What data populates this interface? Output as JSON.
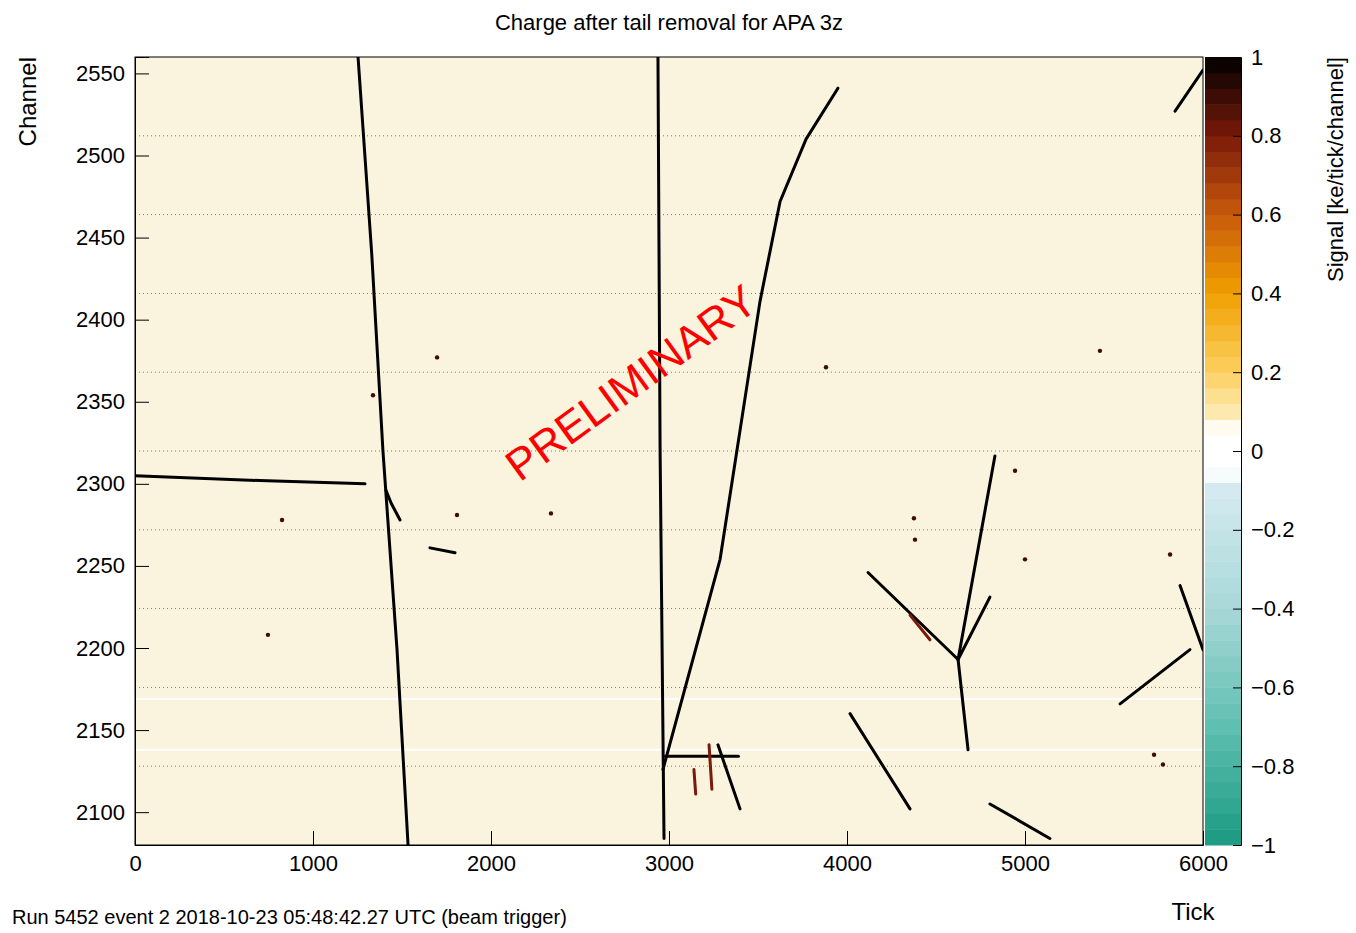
{
  "chart_data": {
    "type": "heatmap",
    "title": "Charge after tail removal for APA 3z",
    "x_label": "Tick",
    "y_label": "Channel",
    "footer": "Run 5452 event 2 2018-10-23 05:48:42.27 UTC (beam trigger)",
    "annotation": "PRELIMINARY",
    "xlim": [
      0,
      6000
    ],
    "xticks": [
      0,
      1000,
      2000,
      3000,
      4000,
      5000,
      6000
    ],
    "ylim": [
      2080,
      2560
    ],
    "yticks": [
      2100,
      2150,
      2200,
      2250,
      2300,
      2350,
      2400,
      2450,
      2500,
      2550
    ],
    "grid": false,
    "dividers": [
      2128,
      2176,
      2224,
      2272,
      2320,
      2368,
      2416,
      2464,
      2512
    ],
    "dead_channels": [
      2138,
      2169
    ],
    "tracks": [
      {
        "x": [
          1253,
          1330,
          1393,
          1472,
          1534
        ],
        "y": [
          2560,
          2440,
          2320,
          2199,
          2080
        ],
        "signal": 1
      },
      {
        "x": [
          0,
          700,
          1292
        ],
        "y": [
          2305,
          2302,
          2300
        ],
        "signal": 1
      },
      {
        "x": [
          1410,
          1440,
          1489
        ],
        "y": [
          2296,
          2288,
          2278
        ],
        "signal": 1
      },
      {
        "x": [
          2938,
          2950,
          2972
        ],
        "y": [
          2560,
          2320,
          2084
        ],
        "signal": 1
      },
      {
        "x": [
          2966,
          3287,
          3511,
          3624,
          3770,
          3949
        ],
        "y": [
          2126,
          2254,
          2411,
          2472,
          2510,
          2541
        ],
        "signal": 1
      },
      {
        "x": [
          2980,
          3390
        ],
        "y": [
          2134,
          2134
        ],
        "signal": 1
      },
      {
        "x": [
          3225,
          3241
        ],
        "y": [
          2141,
          2114
        ],
        "signal": 0.8
      },
      {
        "x": [
          3140,
          3150
        ],
        "y": [
          2126,
          2111
        ],
        "signal": 0.8
      },
      {
        "x": [
          3275,
          3399
        ],
        "y": [
          2141,
          2102
        ],
        "signal": 1
      },
      {
        "x": [
          4118,
          4624
        ],
        "y": [
          2246,
          2193
        ],
        "signal": 1
      },
      {
        "x": [
          4624,
          4831
        ],
        "y": [
          2193,
          2317
        ],
        "signal": 1
      },
      {
        "x": [
          4624,
          4680
        ],
        "y": [
          2193,
          2138
        ],
        "signal": 1
      },
      {
        "x": [
          4624,
          4803
        ],
        "y": [
          2193,
          2231
        ],
        "signal": 1
      },
      {
        "x": [
          4017,
          4354
        ],
        "y": [
          2160,
          2102
        ],
        "signal": 1
      },
      {
        "x": [
          4803,
          5140
        ],
        "y": [
          2105,
          2084
        ],
        "signal": 1
      },
      {
        "x": [
          5534,
          5927
        ],
        "y": [
          2166,
          2199
        ],
        "signal": 1
      },
      {
        "x": [
          5871,
          6000
        ],
        "y": [
          2238,
          2199
        ],
        "signal": 1
      },
      {
        "x": [
          5843,
          6000
        ],
        "y": [
          2527,
          2552
        ],
        "signal": 1
      },
      {
        "x": [
          4354,
          4466
        ],
        "y": [
          2220,
          2205
        ],
        "signal": 0.8
      },
      {
        "x": [
          1657,
          1798
        ],
        "y": [
          2261,
          2258
        ],
        "signal": 1
      }
    ],
    "hits": {
      "x": [
        1697,
        3882,
        4376,
        5000,
        826,
        1809,
        747,
        5421,
        5775,
        5725,
        2337,
        4944,
        4382,
        5815,
        1337
      ],
      "y": [
        2377,
        2371,
        2279,
        2254,
        2278,
        2281,
        2208,
        2381,
        2129,
        2135,
        2282,
        2308,
        2266,
        2257,
        2354
      ],
      "signal": [
        0.9,
        0.9,
        0.9,
        0.9,
        0.9,
        0.9,
        0.9,
        0.9,
        0.9,
        0.9,
        0.9,
        0.9,
        0.9,
        0.9,
        0.9
      ]
    },
    "colorbar": {
      "label": "Signal [ke/tick/channel]",
      "range": [
        -1,
        1
      ],
      "ticks": [
        {
          "value": -1,
          "label": "−1"
        },
        {
          "value": -0.8,
          "label": "−0.8"
        },
        {
          "value": -0.6,
          "label": "−0.6"
        },
        {
          "value": -0.4,
          "label": "−0.4"
        },
        {
          "value": -0.2,
          "label": "−0.2"
        },
        0,
        0.2,
        0.4,
        0.6,
        0.8,
        1
      ]
    }
  }
}
